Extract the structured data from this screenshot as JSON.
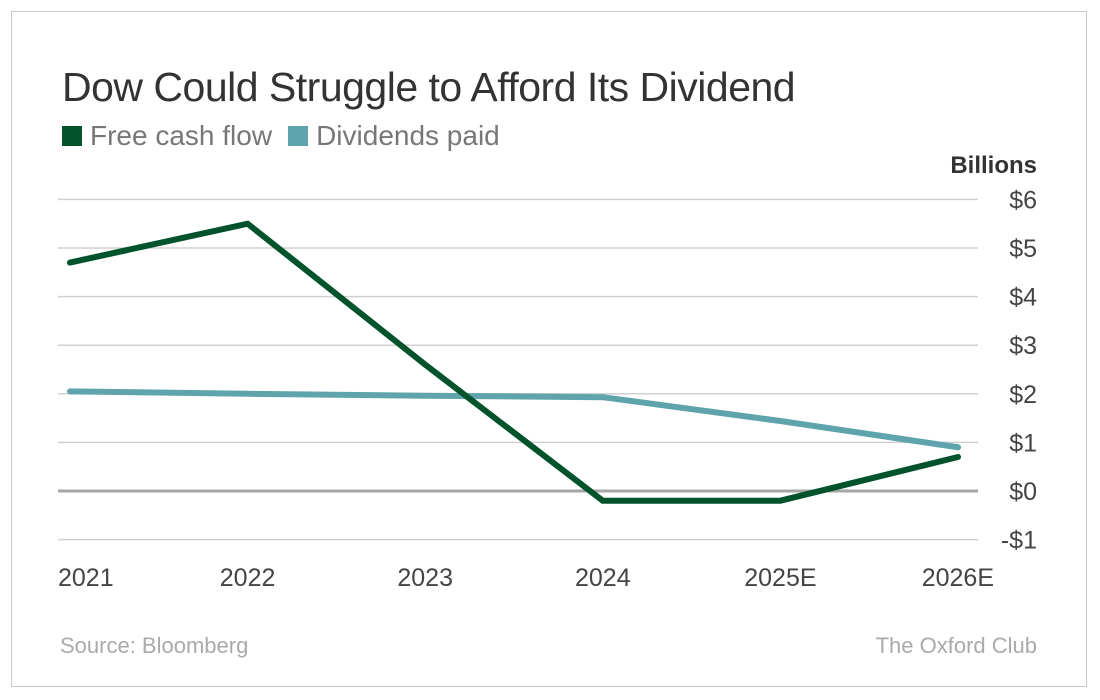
{
  "chart_data": {
    "type": "line",
    "title": "Dow Could Struggle to Afford Its Dividend",
    "ylabel": "Billions",
    "categories": [
      "2021",
      "2022",
      "2023",
      "2024",
      "2025E",
      "2026E"
    ],
    "ylim": [
      -1,
      6
    ],
    "yticks": [
      6,
      5,
      4,
      3,
      2,
      1,
      0,
      -1
    ],
    "ytick_labels": [
      "$6",
      "$5",
      "$4",
      "$3",
      "$2",
      "$1",
      "$0",
      "-$1"
    ],
    "grid": true,
    "legend": "top-left",
    "series": [
      {
        "name": "Free cash flow",
        "color": "#00532a",
        "values": [
          4.7,
          5.5,
          2.6,
          -0.2,
          -0.2,
          0.7
        ]
      },
      {
        "name": "Dividends paid",
        "color": "#5fa4ad",
        "values": [
          2.05,
          2.0,
          1.96,
          1.93,
          1.44,
          0.9
        ]
      }
    ]
  },
  "footer": {
    "source": "Source: Bloomberg",
    "brand": "The Oxford Club"
  }
}
